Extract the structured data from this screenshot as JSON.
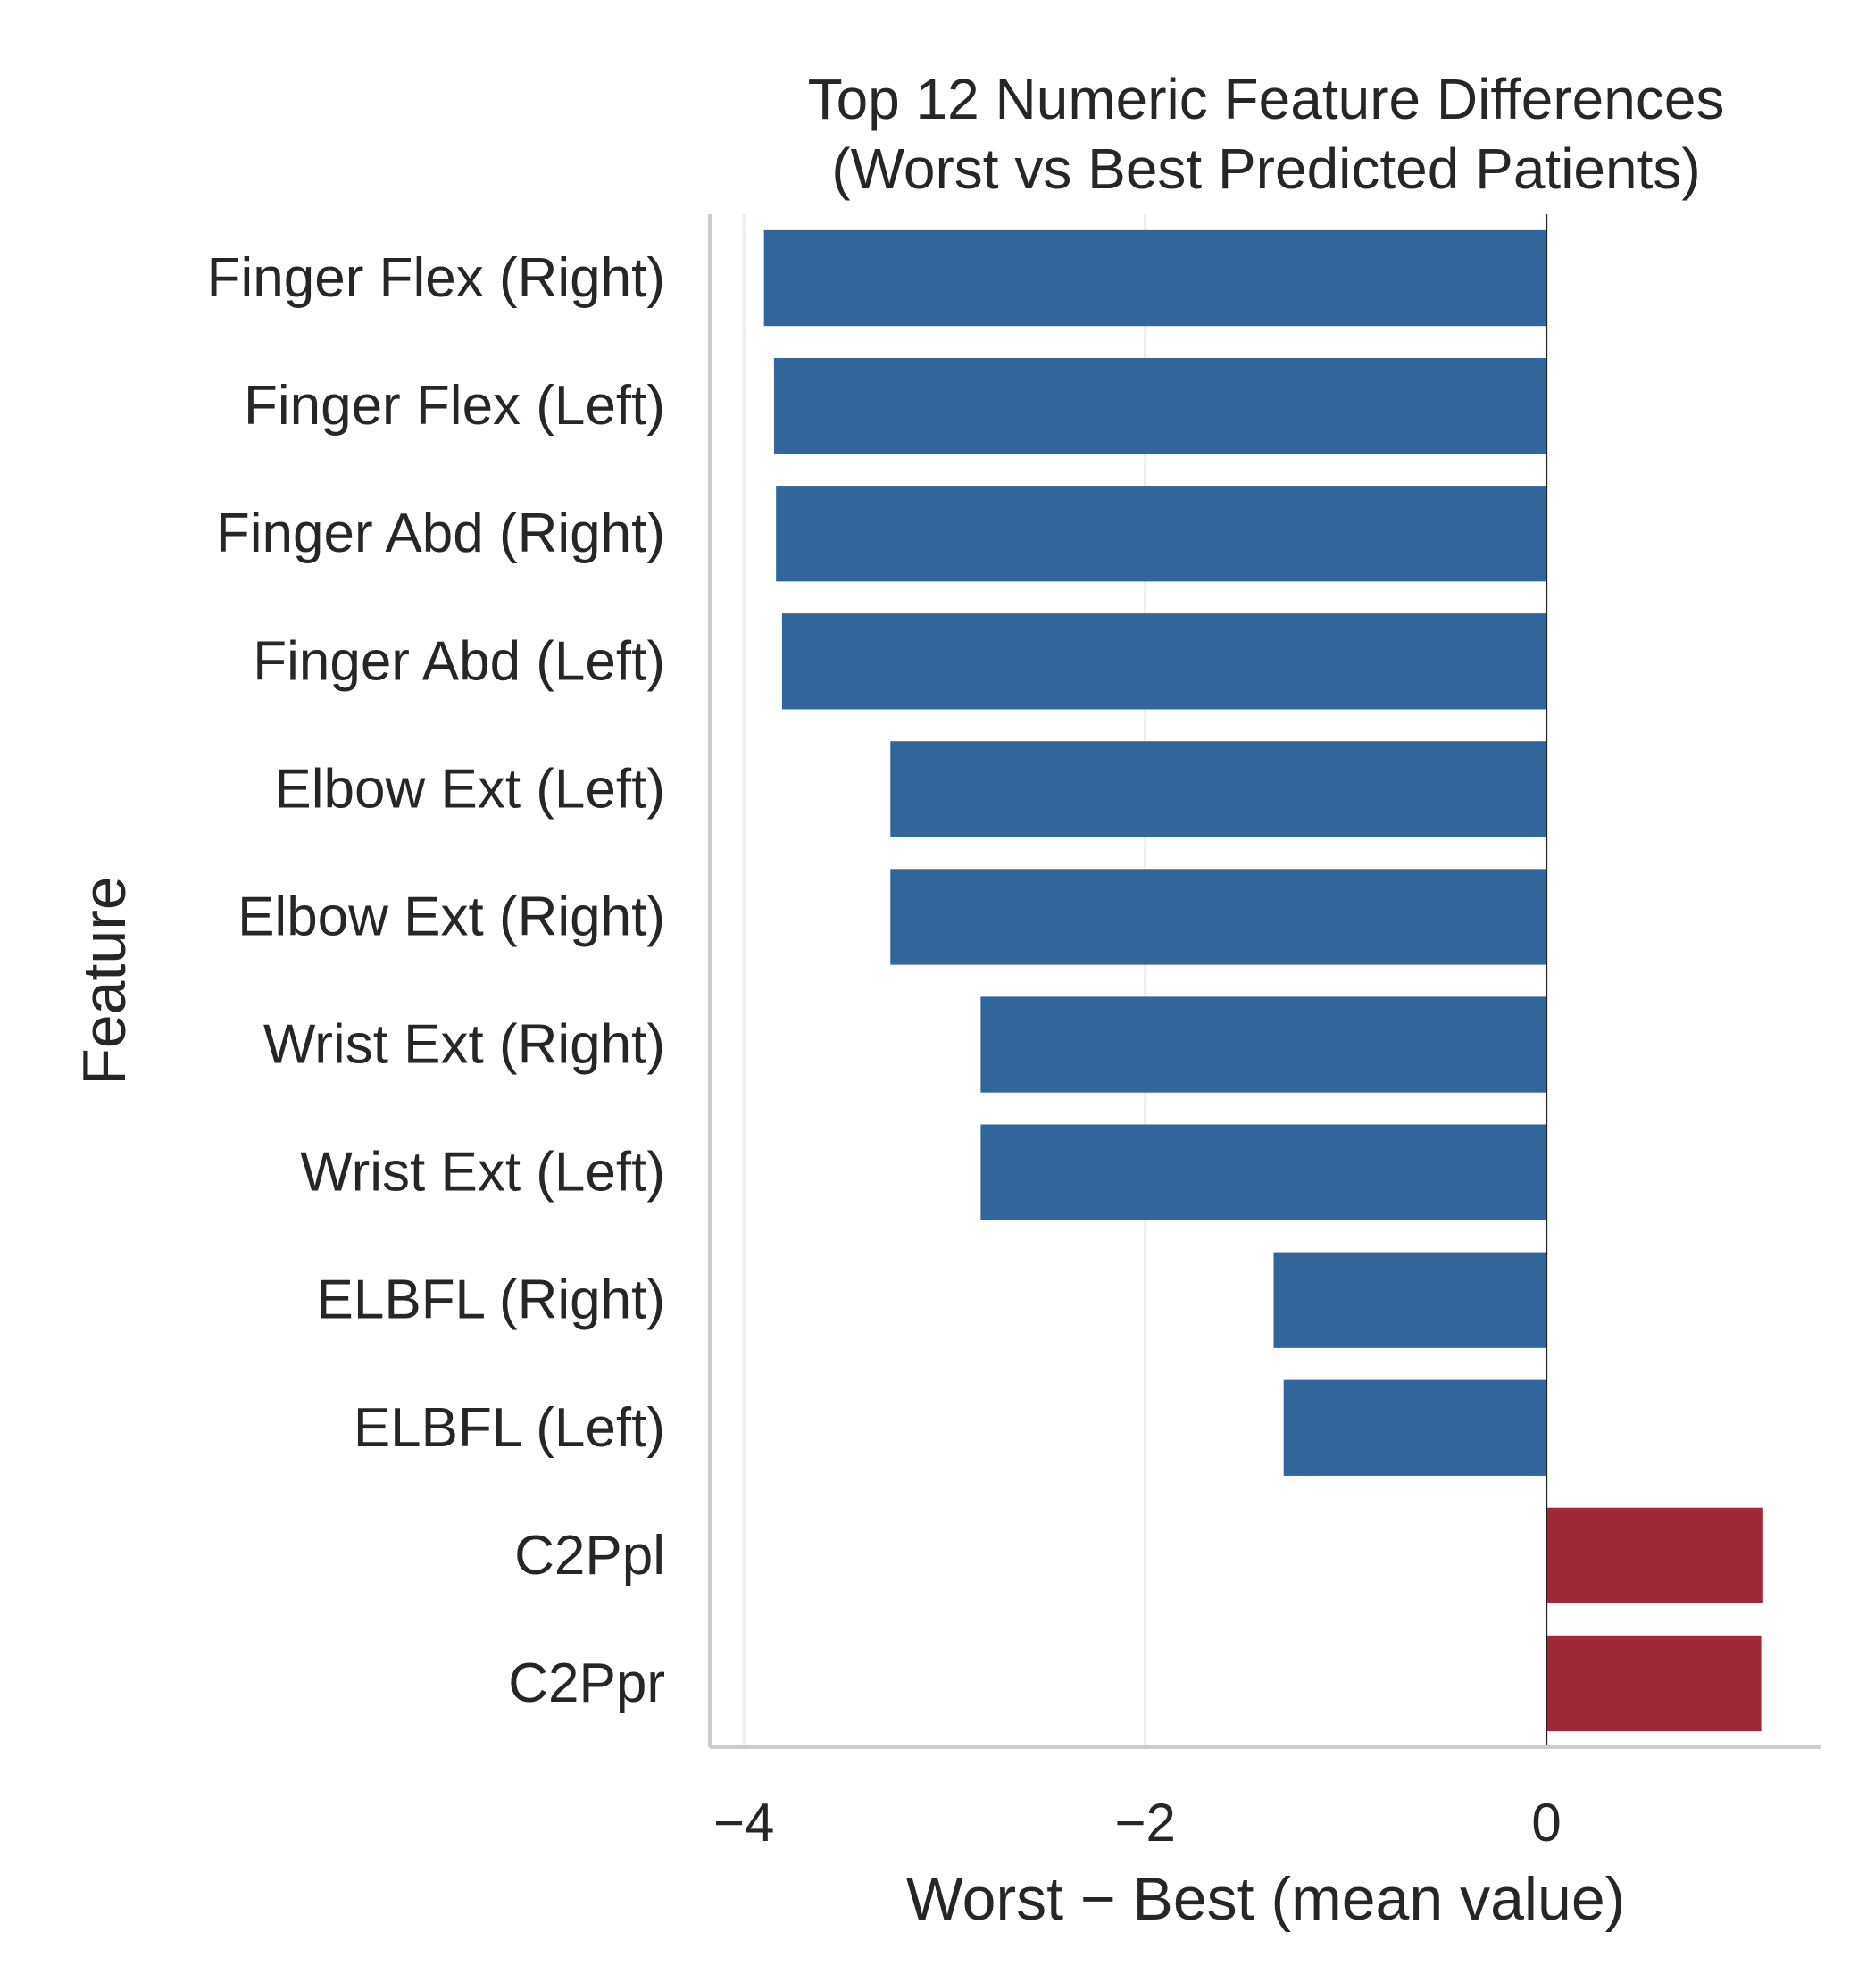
{
  "chart_data": {
    "type": "bar",
    "orientation": "horizontal",
    "title": "Top 12 Numeric Feature Differences\n(Worst vs Best Predicted Patients)",
    "xlabel": "Worst − Best (mean value)",
    "ylabel": "Feature",
    "xlim": [
      -4.17,
      1.37
    ],
    "xticks": [
      -4,
      -2,
      0
    ],
    "xtick_labels": [
      "−4",
      "−2",
      "0"
    ],
    "grid": "vertical",
    "categories": [
      "Finger Flex (Right)",
      "Finger Flex (Left)",
      "Finger Abd (Right)",
      "Finger Abd (Left)",
      "Elbow Ext (Left)",
      "Elbow Ext (Right)",
      "Wrist Ext (Right)",
      "Wrist Ext (Left)",
      "ELBFL (Right)",
      "ELBFL (Left)",
      "C2Ppl",
      "C2Ppr"
    ],
    "values": [
      -3.9,
      -3.85,
      -3.84,
      -3.81,
      -3.27,
      -3.27,
      -2.82,
      -2.82,
      -1.36,
      -1.31,
      1.08,
      1.07
    ],
    "colors": {
      "negative": "#32669a",
      "positive": "#9f2938",
      "zero_line": "#262626",
      "spine": "#cccccc",
      "grid": "#ececec"
    }
  }
}
